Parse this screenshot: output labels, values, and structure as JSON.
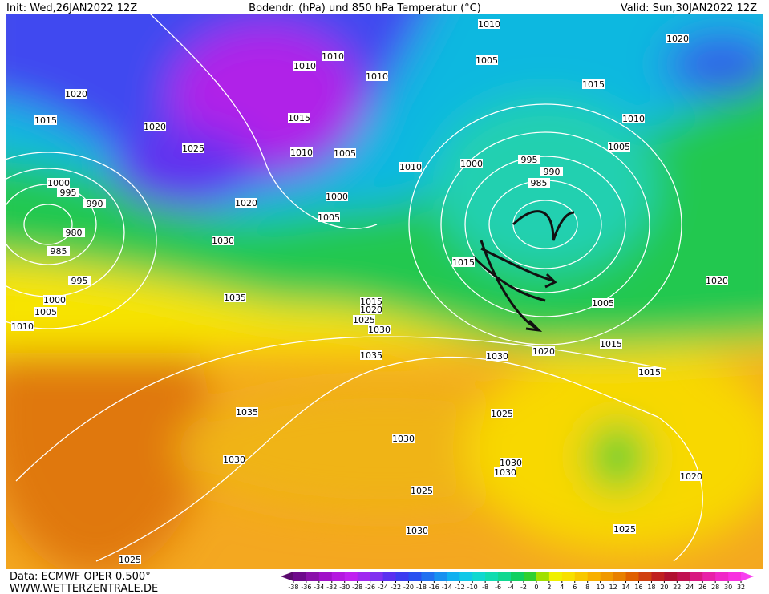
{
  "header": {
    "init": "Init: Wed,26JAN2022 12Z",
    "title": "Bodendr. (hPa) und 850 hPa Temperatur (°C)",
    "valid": "Valid: Sun,30JAN2022 12Z"
  },
  "footer": {
    "source": "Data: ECMWF OPER 0.500°",
    "site": "WWW.WETTERZENTRALE.DE"
  },
  "isobar_labels": [
    "1010",
    "1020",
    "1010",
    "1010",
    "1005",
    "1015",
    "1020",
    "1015",
    "1020",
    "1015",
    "1010",
    "1025",
    "1010",
    "1005",
    "1005",
    "1010",
    "995",
    "1010",
    "1000",
    "990",
    "985",
    "1000",
    "995",
    "990",
    "1020",
    "1000",
    "1005",
    "980",
    "1030",
    "985",
    "1015",
    "995",
    "1020",
    "1035",
    "1000",
    "1015",
    "1005",
    "1005",
    "1020",
    "1025",
    "1010",
    "1030",
    "1015",
    "1035",
    "1030",
    "1020",
    "1015",
    "1035",
    "1025",
    "1030",
    "1030",
    "1030",
    "1030",
    "1020",
    "1025",
    "1030",
    "1025",
    "1025"
  ],
  "colorbar": {
    "ticks": [
      -38,
      -36,
      -34,
      -32,
      -30,
      -28,
      -26,
      -24,
      -22,
      -20,
      -18,
      -16,
      -14,
      -12,
      -10,
      -8,
      -6,
      -4,
      -2,
      0,
      2,
      4,
      6,
      8,
      10,
      12,
      14,
      16,
      18,
      20,
      22,
      24,
      26,
      28,
      30,
      32
    ],
    "colors": [
      "#5a0a6e",
      "#6e0a8c",
      "#8a10aa",
      "#a010c8",
      "#b418e0",
      "#c020f0",
      "#a028f0",
      "#8030f0",
      "#5a30f0",
      "#3c3cf0",
      "#2850f0",
      "#2070f0",
      "#1890f0",
      "#10b0f0",
      "#10c8e8",
      "#10d8d0",
      "#10dcb0",
      "#10d890",
      "#10d060",
      "#30d030",
      "#a0e000",
      "#f0f000",
      "#f8e000",
      "#f8c800",
      "#f8b000",
      "#f09800",
      "#e88000",
      "#e06000",
      "#d04010",
      "#c02020",
      "#b01030",
      "#c01050",
      "#d81880",
      "#e820a8",
      "#f028c8",
      "#f830e0",
      "#f840f0"
    ]
  }
}
